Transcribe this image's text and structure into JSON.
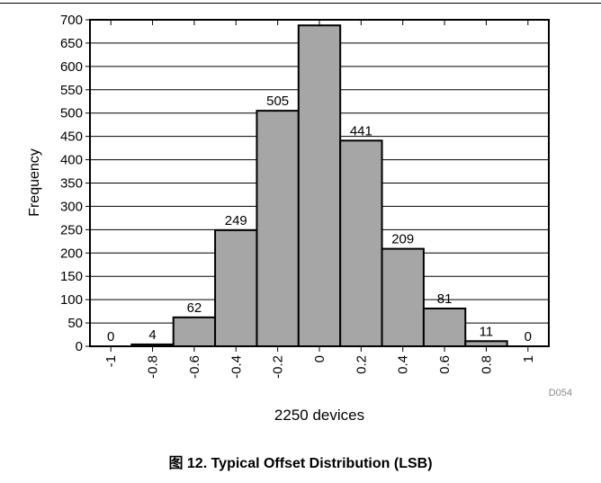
{
  "chart_data": {
    "type": "bar",
    "title": "图 12. Typical Offset Distribution (LSB)",
    "xlabel": "2250 devices",
    "ylabel": "Frequency",
    "code": "D054",
    "categories": [
      "-1",
      "-0.8",
      "-0.6",
      "-0.4",
      "-0.2",
      "0",
      "0.2",
      "0.4",
      "0.6",
      "0.8",
      "1"
    ],
    "values": [
      0,
      4,
      62,
      249,
      505,
      688,
      441,
      209,
      81,
      11,
      0
    ],
    "data_labels": [
      "0",
      "4",
      "62",
      "249",
      "505",
      "",
      "441",
      "209",
      "81",
      "11",
      "0"
    ],
    "yticks": [
      "0",
      "50",
      "100",
      "150",
      "200",
      "250",
      "300",
      "350",
      "400",
      "450",
      "500",
      "550",
      "600",
      "650",
      "700"
    ],
    "ylim": [
      0,
      700
    ],
    "grid": true,
    "colors": {
      "bar_fill": "#a6a6a6",
      "bar_stroke": "#000000",
      "grid": "#000000"
    }
  }
}
